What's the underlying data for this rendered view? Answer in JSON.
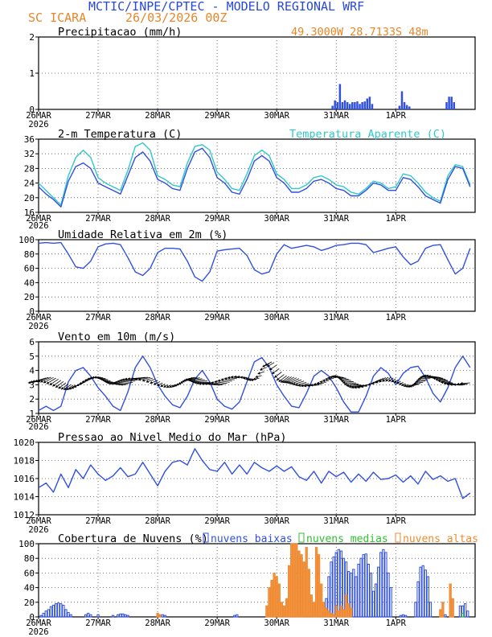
{
  "header": {
    "model_title": "MCTIC/INPE/CPTEC - MODELO REGIONAL WRF",
    "station": "SC ICARA",
    "run": "26/03/2026 00Z",
    "coords": "49.3000W 28.7133S 48m"
  },
  "colors": {
    "blue": "#3050e0",
    "cyan": "#30c8c8",
    "green": "#30c030",
    "orange": "#f08a30",
    "black": "#000000",
    "title_blue": "#2848d8",
    "title_orange": "#e8862a"
  },
  "x_axis": {
    "ticks": [
      "26MAR",
      "27MAR",
      "28MAR",
      "29MAR",
      "30MAR",
      "31MAR",
      "1APR"
    ],
    "year": "2026"
  },
  "chart_data": [
    {
      "id": "precip",
      "type": "bar",
      "title": "Precipitacao (mm/h)",
      "ylim": [
        0,
        2
      ],
      "yticks": [
        "0",
        "1",
        "2"
      ],
      "x_hours": [
        48.5,
        118.5,
        119.5,
        120.5,
        121.5,
        122.5,
        123.5,
        124.5,
        125.5,
        126.5,
        127.5,
        128.5,
        129.5,
        130.5,
        131.5,
        132.5,
        133.5,
        134.5,
        145.5,
        146.5,
        147.5,
        148.5,
        149.5,
        164.5,
        165.5,
        166.5,
        167.5
      ],
      "values": [
        0.02,
        0.1,
        0.25,
        0.2,
        0.7,
        0.2,
        0.25,
        0.2,
        0.15,
        0.2,
        0.2,
        0.22,
        0.15,
        0.2,
        0.22,
        0.3,
        0.35,
        0.15,
        0.1,
        0.5,
        0.2,
        0.12,
        0.08,
        0.2,
        0.35,
        0.35,
        0.2
      ]
    },
    {
      "id": "temperature",
      "type": "line",
      "title": "2-m Temperatura (C)",
      "legend": "Temperatura Aparente (C)",
      "ylim": [
        16,
        36
      ],
      "yticks": [
        "16",
        "20",
        "24",
        "28",
        "32",
        "36"
      ],
      "series": [
        {
          "name": "2-m Temperatura (C)",
          "color_key": "blue",
          "x": [
            0,
            3,
            6,
            9,
            12,
            15,
            18,
            21,
            24,
            27,
            30,
            33,
            36,
            39,
            42,
            45,
            48,
            51,
            54,
            57,
            60,
            63,
            66,
            69,
            72,
            75,
            78,
            81,
            84,
            87,
            90,
            93,
            96,
            99,
            102,
            105,
            108,
            111,
            114,
            117,
            120,
            123,
            126,
            129,
            132,
            135,
            138,
            141,
            144,
            147,
            150,
            153,
            156,
            159,
            162,
            165,
            168,
            171,
            174
          ],
          "values": [
            23,
            21,
            19.5,
            17.5,
            24.5,
            28.5,
            29.5,
            28,
            24,
            23,
            22,
            21,
            26,
            31,
            32.5,
            30,
            25,
            24,
            22.5,
            22,
            28,
            32.5,
            33.5,
            31,
            25.5,
            24,
            21.5,
            21,
            25,
            30,
            31.5,
            30,
            25.5,
            24,
            21.5,
            21.5,
            22.5,
            24.5,
            25,
            24,
            22.5,
            22,
            20.5,
            20.5,
            22,
            24,
            23.5,
            22,
            22,
            25.5,
            25,
            23,
            20.5,
            19.5,
            18.5,
            25,
            28.5,
            28,
            23
          ]
        },
        {
          "name": "Temperatura Aparente (C)",
          "color_key": "cyan",
          "x": [
            0,
            3,
            6,
            9,
            12,
            15,
            18,
            21,
            24,
            27,
            30,
            33,
            36,
            39,
            42,
            45,
            48,
            51,
            54,
            57,
            60,
            63,
            66,
            69,
            72,
            75,
            78,
            81,
            84,
            87,
            90,
            93,
            96,
            99,
            102,
            105,
            108,
            111,
            114,
            117,
            120,
            123,
            126,
            129,
            132,
            135,
            138,
            141,
            144,
            147,
            150,
            153,
            156,
            159,
            162,
            165,
            168,
            171,
            174
          ],
          "values": [
            24,
            22,
            20,
            18,
            26,
            31,
            33,
            31,
            25.5,
            24,
            23,
            22,
            27.5,
            34,
            35,
            33,
            26,
            25,
            23.5,
            23,
            29.5,
            34,
            34.5,
            33,
            27,
            25,
            22.5,
            22,
            26.5,
            31.5,
            33,
            31.5,
            26.5,
            25,
            22.5,
            22.5,
            23.5,
            25.5,
            26,
            25,
            23.5,
            23,
            21.5,
            21,
            22.5,
            24.5,
            24,
            22.5,
            23,
            26.5,
            26,
            24,
            21.5,
            20,
            19,
            26,
            29,
            28.5,
            23.5
          ]
        }
      ]
    },
    {
      "id": "humidity",
      "type": "line",
      "title": "Umidade Relativa em 2m (%)",
      "ylim": [
        0,
        100
      ],
      "yticks": [
        "0",
        "20",
        "40",
        "60",
        "80",
        "100"
      ],
      "series": [
        {
          "name": "Umidade Relativa em 2m (%)",
          "color_key": "blue",
          "x": [
            0,
            3,
            6,
            9,
            12,
            15,
            18,
            21,
            24,
            27,
            30,
            33,
            36,
            39,
            42,
            45,
            48,
            51,
            54,
            57,
            60,
            63,
            66,
            69,
            72,
            75,
            78,
            81,
            84,
            87,
            90,
            93,
            96,
            99,
            102,
            105,
            108,
            111,
            114,
            117,
            120,
            123,
            126,
            129,
            132,
            135,
            138,
            141,
            144,
            147,
            150,
            153,
            156,
            159,
            162,
            165,
            168,
            171,
            174
          ],
          "values": [
            95,
            96,
            95,
            96,
            80,
            62,
            60,
            70,
            90,
            94,
            95,
            93,
            75,
            55,
            50,
            60,
            82,
            88,
            88,
            87,
            70,
            48,
            42,
            55,
            84,
            86,
            87,
            88,
            78,
            58,
            52,
            55,
            80,
            93,
            88,
            90,
            92,
            90,
            85,
            88,
            92,
            93,
            95,
            95,
            93,
            82,
            85,
            88,
            90,
            76,
            65,
            70,
            88,
            92,
            93,
            72,
            52,
            60,
            88
          ]
        }
      ]
    },
    {
      "id": "wind",
      "type": "line",
      "title": "Vento em 10m (m/s)",
      "ylim": [
        1,
        6
      ],
      "yticks": [
        "1",
        "2",
        "3",
        "4",
        "5",
        "6"
      ],
      "series": [
        {
          "name": "Vento em 10m (m/s)",
          "color_key": "blue",
          "x": [
            0,
            3,
            6,
            9,
            12,
            15,
            18,
            21,
            24,
            27,
            30,
            33,
            36,
            39,
            42,
            45,
            48,
            51,
            54,
            57,
            60,
            63,
            66,
            69,
            72,
            75,
            78,
            81,
            84,
            87,
            90,
            93,
            96,
            99,
            102,
            105,
            108,
            111,
            114,
            117,
            120,
            123,
            126,
            129,
            132,
            135,
            138,
            141,
            144,
            147,
            150,
            153,
            156,
            159,
            162,
            165,
            168,
            171,
            174
          ],
          "values": [
            1.2,
            1.5,
            1.2,
            1.5,
            3.2,
            4,
            4.2,
            3.6,
            2.8,
            2.2,
            1.5,
            1.2,
            2.5,
            4.2,
            5,
            4.2,
            3,
            2.2,
            1.6,
            1.4,
            2.2,
            3.4,
            4,
            3.2,
            2,
            1.5,
            1.3,
            1.8,
            3.2,
            4.6,
            4.9,
            4.2,
            3,
            2.2,
            1.5,
            1.4,
            2.4,
            3.6,
            4,
            3.6,
            2.8,
            1.8,
            1.1,
            1.1,
            2.2,
            3.6,
            4.2,
            3.8,
            3,
            3.8,
            4.2,
            4.3,
            3.5,
            2.4,
            1.8,
            2.8,
            4.2,
            5,
            4.2
          ]
        }
      ],
      "arrows": {
        "x_start": 0,
        "x_end": 174,
        "step": 1,
        "mean": 3.25,
        "hump": {
          "center": 94,
          "width": 4,
          "height": 1.6
        }
      }
    },
    {
      "id": "pressure",
      "type": "line",
      "title": "Pressao ao Nivel Medio do Mar (hPa)",
      "ylim": [
        1012,
        1020
      ],
      "yticks": [
        "1012",
        "1014",
        "1016",
        "1018",
        "1020"
      ],
      "series": [
        {
          "name": "Pressao ao Nivel Medio do Mar (hPa)",
          "color_key": "blue",
          "x": [
            0,
            3,
            6,
            9,
            12,
            15,
            18,
            21,
            24,
            27,
            30,
            33,
            36,
            39,
            42,
            45,
            48,
            51,
            54,
            57,
            60,
            63,
            66,
            69,
            72,
            75,
            78,
            81,
            84,
            87,
            90,
            93,
            96,
            99,
            102,
            105,
            108,
            111,
            114,
            117,
            120,
            123,
            126,
            129,
            132,
            135,
            138,
            141,
            144,
            147,
            150,
            153,
            156,
            159,
            162,
            165,
            168,
            171,
            174
          ],
          "values": [
            1015,
            1015.5,
            1014.5,
            1016.5,
            1015,
            1017,
            1016,
            1017.5,
            1016.5,
            1015.8,
            1016.3,
            1017.2,
            1016.2,
            1016.5,
            1017.8,
            1016.5,
            1015.2,
            1016.8,
            1017.8,
            1018,
            1017.5,
            1019.3,
            1018,
            1017,
            1016.8,
            1017.8,
            1016.5,
            1017.5,
            1016.5,
            1017.8,
            1017.2,
            1016.8,
            1017.4,
            1016.8,
            1017.3,
            1016.2,
            1015.8,
            1016.8,
            1015.5,
            1016.8,
            1016.2,
            1016.7,
            1015.6,
            1016.5,
            1015.7,
            1016.7,
            1015.9,
            1016,
            1016.4,
            1015.6,
            1016.3,
            1015.4,
            1016.8,
            1015.9,
            1016.3,
            1015.7,
            1016,
            1013.8,
            1014.4
          ]
        }
      ]
    },
    {
      "id": "clouds",
      "type": "bar",
      "title": "Cobertura de Nuvens (%)",
      "ylim": [
        0,
        100
      ],
      "yticks": [
        "0",
        "20",
        "40",
        "60",
        "80",
        "100"
      ],
      "legend": {
        "low": "nuvens baixas",
        "mid": "nuvens medias",
        "high": "nuvens altas"
      },
      "series": [
        {
          "name": "nuvens baixas",
          "color_key": "blue",
          "x": [
            1,
            2,
            3,
            4,
            5,
            6,
            7,
            8,
            9,
            10,
            11,
            12,
            13,
            19,
            20,
            21,
            24,
            30,
            32,
            33,
            34,
            35,
            36,
            49,
            50,
            51,
            79,
            80,
            115,
            116,
            117,
            118,
            119,
            120,
            121,
            122,
            123,
            124,
            125,
            126,
            127,
            128,
            129,
            130,
            131,
            132,
            133,
            134,
            135,
            136,
            137,
            138,
            139,
            140,
            141,
            142,
            146,
            147,
            148,
            152,
            153,
            154,
            155,
            156,
            157,
            158,
            164,
            170,
            171,
            172,
            173
          ],
          "values": [
            2,
            5,
            8,
            10,
            14,
            16,
            18,
            19,
            18,
            16,
            10,
            6,
            3,
            3,
            5,
            3,
            3,
            2,
            3,
            4,
            4,
            3,
            2,
            2,
            3,
            2,
            2,
            3,
            5,
            25,
            55,
            75,
            82,
            88,
            92,
            90,
            80,
            75,
            62,
            60,
            65,
            55,
            72,
            80,
            85,
            86,
            72,
            60,
            35,
            45,
            68,
            88,
            92,
            88,
            60,
            40,
            2,
            3,
            2,
            20,
            48,
            68,
            70,
            64,
            55,
            20,
            3,
            15,
            15,
            18,
            8
          ]
        },
        {
          "name": "nuvens medias",
          "color_key": "green",
          "x": [
            171
          ],
          "values": [
            5
          ]
        },
        {
          "name": "nuvens altas",
          "color_key": "orange",
          "x": [
            48,
            49,
            92,
            93,
            94,
            95,
            96,
            97,
            98,
            99,
            100,
            101,
            102,
            103,
            104,
            105,
            106,
            107,
            108,
            109,
            110,
            111,
            112,
            113,
            114,
            115,
            116,
            117,
            118,
            119,
            120,
            121,
            122,
            123,
            124,
            125,
            126,
            162,
            163,
            166,
            167
          ],
          "values": [
            5,
            3,
            15,
            40,
            50,
            60,
            55,
            45,
            20,
            15,
            25,
            70,
            100,
            100,
            100,
            90,
            85,
            75,
            95,
            65,
            30,
            20,
            95,
            85,
            45,
            20,
            12,
            8,
            5,
            3,
            15,
            8,
            15,
            10,
            30,
            18,
            12,
            10,
            20,
            45,
            25
          ]
        }
      ]
    }
  ]
}
